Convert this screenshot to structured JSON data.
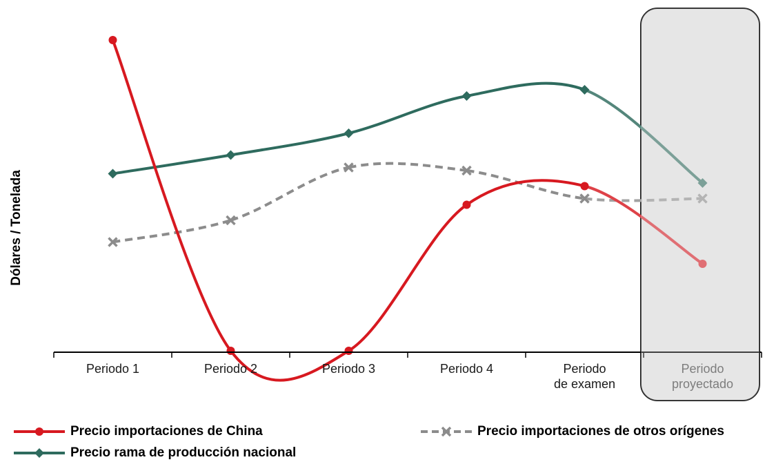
{
  "chart_data": {
    "type": "line",
    "ylabel": "Dólares / Tonelada",
    "xlabel": "",
    "categories": [
      [
        "Periodo 1"
      ],
      [
        "Periodo 2"
      ],
      [
        "Periodo 3"
      ],
      [
        "Periodo 4"
      ],
      [
        "Periodo",
        "de examen"
      ],
      [
        "Periodo",
        "proyectado"
      ]
    ],
    "projected_from_index": 5,
    "ylim": [
      0,
      100
    ],
    "series": [
      {
        "name": "Precio importaciones de China",
        "color": "#d71920",
        "marker": "circle",
        "dashed": false,
        "values": [
          100,
          0,
          0,
          47,
          53,
          28
        ]
      },
      {
        "name": "Precio importaciones de otros orígenes",
        "color": "#8c8c8c",
        "marker": "x",
        "dashed": true,
        "values": [
          35,
          42,
          59,
          58,
          49,
          49
        ]
      },
      {
        "name": "Precio rama de producción nacional",
        "color": "#2e6b5e",
        "marker": "diamond",
        "dashed": false,
        "values": [
          57,
          63,
          70,
          82,
          84,
          54
        ]
      }
    ],
    "legend_position": "bottom",
    "grid": false
  }
}
